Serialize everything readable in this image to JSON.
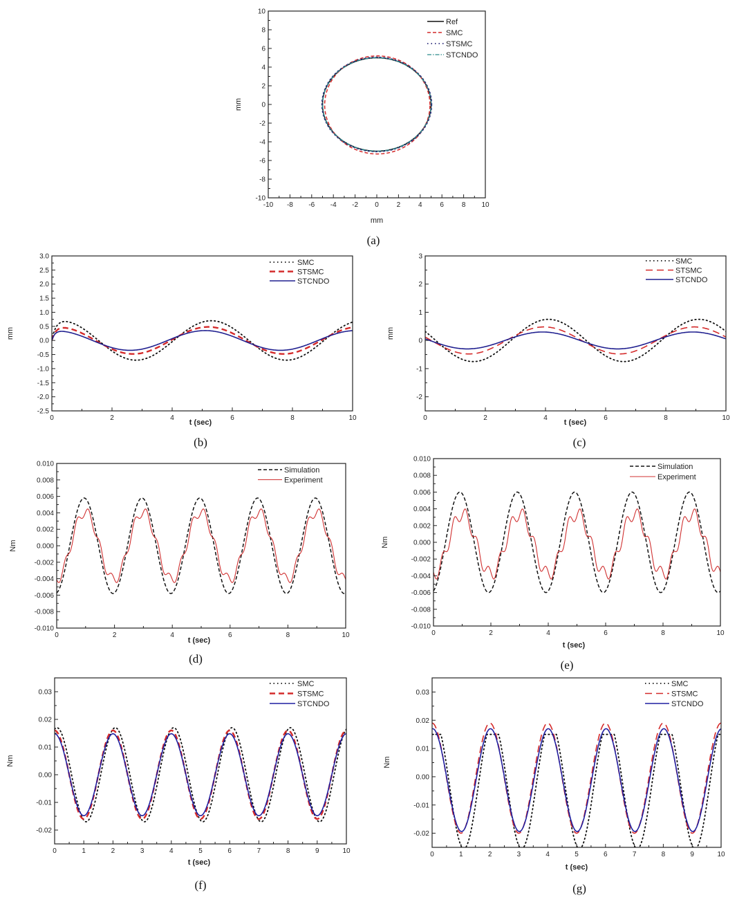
{
  "chart_data": [
    {
      "id": "a",
      "caption": "(a)",
      "type": "line",
      "xlabel": "mm",
      "ylabel": "mm",
      "xlim": [
        -10,
        10
      ],
      "ylim": [
        -10,
        10
      ],
      "xticks": [
        -10,
        -8,
        -6,
        -4,
        -2,
        0,
        2,
        4,
        6,
        8,
        10
      ],
      "xtick_labels": [
        "-10",
        "-8",
        "-6",
        "-4",
        "-2",
        "0",
        "2",
        "4",
        "6",
        "8",
        "10"
      ],
      "yticks": [
        -10,
        -8,
        -6,
        -4,
        -2,
        0,
        2,
        4,
        6,
        8,
        10
      ],
      "ytick_labels": [
        "-10",
        "-8",
        "-6",
        "-4",
        "-2",
        "0",
        "2",
        "4",
        "6",
        "8",
        "10"
      ],
      "legend_position": "top-right",
      "grid": false,
      "series": [
        {
          "name": "Ref",
          "shape": "ellipse",
          "cx": 0,
          "cy": 0,
          "rx": 5.0,
          "ry": 5.0,
          "color": "#111111",
          "style": "solid"
        },
        {
          "name": "SMC",
          "shape": "ellipse",
          "cx": 0.05,
          "cy": -0.05,
          "rx": 4.85,
          "ry": 5.25,
          "color": "#d42a2a",
          "style": "dashed"
        },
        {
          "name": "STSMC",
          "shape": "ellipse",
          "cx": 0,
          "cy": 0,
          "rx": 5.05,
          "ry": 5.05,
          "color": "#2a2a7a",
          "style": "dotted"
        },
        {
          "name": "STCNDO",
          "shape": "ellipse",
          "cx": 0,
          "cy": 0,
          "rx": 5.0,
          "ry": 5.0,
          "color": "#2a8a8a",
          "style": "dashdot"
        }
      ]
    },
    {
      "id": "b",
      "caption": "(b)",
      "type": "line",
      "xlabel": "t (sec)",
      "ylabel": "mm",
      "xlim": [
        0,
        10
      ],
      "ylim": [
        -2.5,
        3.0
      ],
      "xticks": [
        0,
        2,
        4,
        6,
        8,
        10
      ],
      "xtick_labels": [
        "0",
        "2",
        "4",
        "6",
        "8",
        "10"
      ],
      "yticks": [
        -2.5,
        -2.0,
        -1.5,
        -1.0,
        -0.5,
        0,
        0.5,
        1.0,
        1.5,
        2.0,
        2.5,
        3.0
      ],
      "ytick_labels": [
        "-2.5",
        "-2.0",
        "-1.5",
        "-1.0",
        "-0.5",
        "0.0",
        "0.5",
        "1.0",
        "1.5",
        "2.0",
        "2.5",
        "3.0"
      ],
      "legend_position": "top-right",
      "grid": false,
      "series": [
        {
          "name": "SMC",
          "color": "#111111",
          "style": "dotted",
          "ramp": 0.12,
          "terms": [
            {
              "amp": 0.7,
              "period": 5,
              "peak": 5.3
            }
          ]
        },
        {
          "name": "STSMC",
          "color": "#d42a2a",
          "style": "dashed-bold",
          "ramp": 0.12,
          "terms": [
            {
              "amp": 0.48,
              "period": 5,
              "peak": 5.2
            }
          ]
        },
        {
          "name": "STCNDO",
          "color": "#1f1f8f",
          "style": "solid",
          "ramp": 0.1,
          "terms": [
            {
              "amp": 0.35,
              "period": 5,
              "peak": 5.1
            }
          ]
        }
      ]
    },
    {
      "id": "c",
      "caption": "(c)",
      "type": "line",
      "xlabel": "t (sec)",
      "ylabel": "mm",
      "xlim": [
        0,
        10
      ],
      "ylim": [
        -2.5,
        3
      ],
      "xticks": [
        0,
        2,
        4,
        6,
        8,
        10
      ],
      "xtick_labels": [
        "0",
        "2",
        "4",
        "6",
        "8",
        "10"
      ],
      "yticks": [
        -2,
        -1,
        0,
        1,
        2,
        3
      ],
      "ytick_labels": [
        "-2",
        "-1",
        "0",
        "1",
        "2",
        "3"
      ],
      "legend_position": "top-right",
      "grid": false,
      "series": [
        {
          "name": "SMC",
          "color": "#111111",
          "style": "dotted",
          "terms": [
            {
              "amp": 0.75,
              "period": 5,
              "peak": 4.1
            }
          ]
        },
        {
          "name": "STSMC",
          "color": "#d42a2a",
          "style": "dashed-long",
          "terms": [
            {
              "amp": 0.48,
              "period": 5,
              "peak": 3.95
            }
          ]
        },
        {
          "name": "STCNDO",
          "color": "#1f1f8f",
          "style": "solid",
          "terms": [
            {
              "amp": 0.3,
              "period": 5,
              "peak": 3.9
            }
          ]
        }
      ]
    },
    {
      "id": "d",
      "caption": "(d)",
      "type": "line",
      "xlabel": "t (sec)",
      "ylabel": "Nm",
      "xlim": [
        0,
        10
      ],
      "ylim": [
        -0.01,
        0.01
      ],
      "xticks": [
        0,
        2,
        4,
        6,
        8,
        10
      ],
      "xtick_labels": [
        "0",
        "2",
        "4",
        "6",
        "8",
        "10"
      ],
      "yticks": [
        -0.01,
        -0.008,
        -0.006,
        -0.004,
        -0.002,
        0,
        0.002,
        0.004,
        0.006,
        0.008,
        0.01
      ],
      "ytick_labels": [
        "-0.010",
        "-0.008",
        "-0.006",
        "-0.004",
        "-0.002",
        "0.000",
        "0.002",
        "0.004",
        "0.006",
        "0.008",
        "0.010"
      ],
      "legend_position": "top-right",
      "grid": false,
      "series": [
        {
          "name": "Simulation",
          "color": "#111111",
          "style": "dashed",
          "terms": [
            {
              "amp": 0.0058,
              "period": 2,
              "peak": 0.95
            }
          ]
        },
        {
          "name": "Experiment",
          "color": "#d03030",
          "style": "thin",
          "terms": [
            {
              "amp": 0.0041,
              "period": 2,
              "peak": 0.98
            },
            {
              "amp": 0.0006,
              "period": 0.4,
              "peak": 0.7
            }
          ]
        }
      ]
    },
    {
      "id": "e",
      "caption": "(e)",
      "type": "line",
      "xlabel": "t (sec)",
      "ylabel": "Nm",
      "xlim": [
        0,
        10
      ],
      "ylim": [
        -0.01,
        0.01
      ],
      "xticks": [
        0,
        2,
        4,
        6,
        8,
        10
      ],
      "xtick_labels": [
        "0",
        "2",
        "4",
        "6",
        "8",
        "10"
      ],
      "yticks": [
        -0.01,
        -0.008,
        -0.006,
        -0.004,
        -0.002,
        0,
        0.002,
        0.004,
        0.006,
        0.008,
        0.01
      ],
      "ytick_labels": [
        "-0.010",
        "-0.008",
        "-0.006",
        "-0.004",
        "-0.002",
        "0.000",
        "0.002",
        "0.004",
        "0.006",
        "0.008",
        "0.010"
      ],
      "legend_position": "top-right",
      "grid": false,
      "series": [
        {
          "name": "Simulation",
          "color": "#111111",
          "style": "dashed",
          "terms": [
            {
              "amp": 0.006,
              "period": 2,
              "peak": 0.92
            }
          ]
        },
        {
          "name": "Experiment",
          "color": "#d03030",
          "style": "thin",
          "offset": -0.0002,
          "terms": [
            {
              "amp": 0.0036,
              "period": 2,
              "peak": 1.0
            },
            {
              "amp": 0.0008,
              "period": 0.4,
              "peak": 0.72
            }
          ]
        }
      ]
    },
    {
      "id": "f",
      "caption": "(f)",
      "type": "line",
      "xlabel": "t (sec)",
      "ylabel": "Nm",
      "xlim": [
        0,
        10
      ],
      "ylim": [
        -0.025,
        0.035
      ],
      "xticks": [
        0,
        1,
        2,
        3,
        4,
        5,
        6,
        7,
        8,
        9,
        10
      ],
      "xtick_labels": [
        "0",
        "1",
        "2",
        "3",
        "4",
        "5",
        "6",
        "7",
        "8",
        "9",
        "10"
      ],
      "yticks": [
        -0.02,
        -0.01,
        0,
        0.01,
        0.02,
        0.03
      ],
      "ytick_labels": [
        "-0.02",
        "-0.01",
        "0.00",
        "0.01",
        "0.02",
        "0.03"
      ],
      "legend_position": "top-right",
      "grid": false,
      "series": [
        {
          "name": "SMC",
          "color": "#111111",
          "style": "dotted",
          "terms": [
            {
              "amp": 0.017,
              "period": 2,
              "peak": 0.08
            }
          ]
        },
        {
          "name": "STSMC",
          "color": "#d42a2a",
          "style": "dashed-bold",
          "terms": [
            {
              "amp": 0.016,
              "period": 2,
              "peak": 0.0
            }
          ]
        },
        {
          "name": "STCNDO",
          "color": "#1f1fa0",
          "style": "solid",
          "terms": [
            {
              "amp": 0.0148,
              "period": 2,
              "peak": 0.0
            }
          ]
        }
      ]
    },
    {
      "id": "g",
      "caption": "(g)",
      "type": "line",
      "xlabel": "t (sec)",
      "ylabel": "Nm",
      "xlim": [
        0,
        10
      ],
      "ylim": [
        -0.025,
        0.035
      ],
      "xticks": [
        0,
        1,
        2,
        3,
        4,
        5,
        6,
        7,
        8,
        9,
        10
      ],
      "xtick_labels": [
        "0",
        "1",
        "2",
        "3",
        "4",
        "5",
        "6",
        "7",
        "8",
        "9",
        "10"
      ],
      "yticks": [
        -0.02,
        -0.01,
        0,
        0.01,
        0.02,
        0.03
      ],
      "ytick_labels": [
        "-0.02",
        "-0.01",
        "0.00",
        "0.01",
        "0.02",
        "0.03"
      ],
      "legend_position": "top-right",
      "grid": false,
      "series": [
        {
          "name": "SMC",
          "color": "#111111",
          "style": "dotted",
          "offset": -0.003,
          "clip_max": 0.015,
          "terms": [
            {
              "amp": 0.0225,
              "period": 2,
              "peak": 0.1
            }
          ]
        },
        {
          "name": "STSMC",
          "color": "#d42a2a",
          "style": "dashed-long",
          "offset": -0.0005,
          "terms": [
            {
              "amp": 0.0195,
              "period": 2,
              "peak": 0.0
            }
          ]
        },
        {
          "name": "STCNDO",
          "color": "#1f1fa0",
          "style": "solid",
          "offset": -0.0012,
          "terms": [
            {
              "amp": 0.0182,
              "period": 2,
              "peak": 0.02
            }
          ]
        }
      ]
    }
  ]
}
